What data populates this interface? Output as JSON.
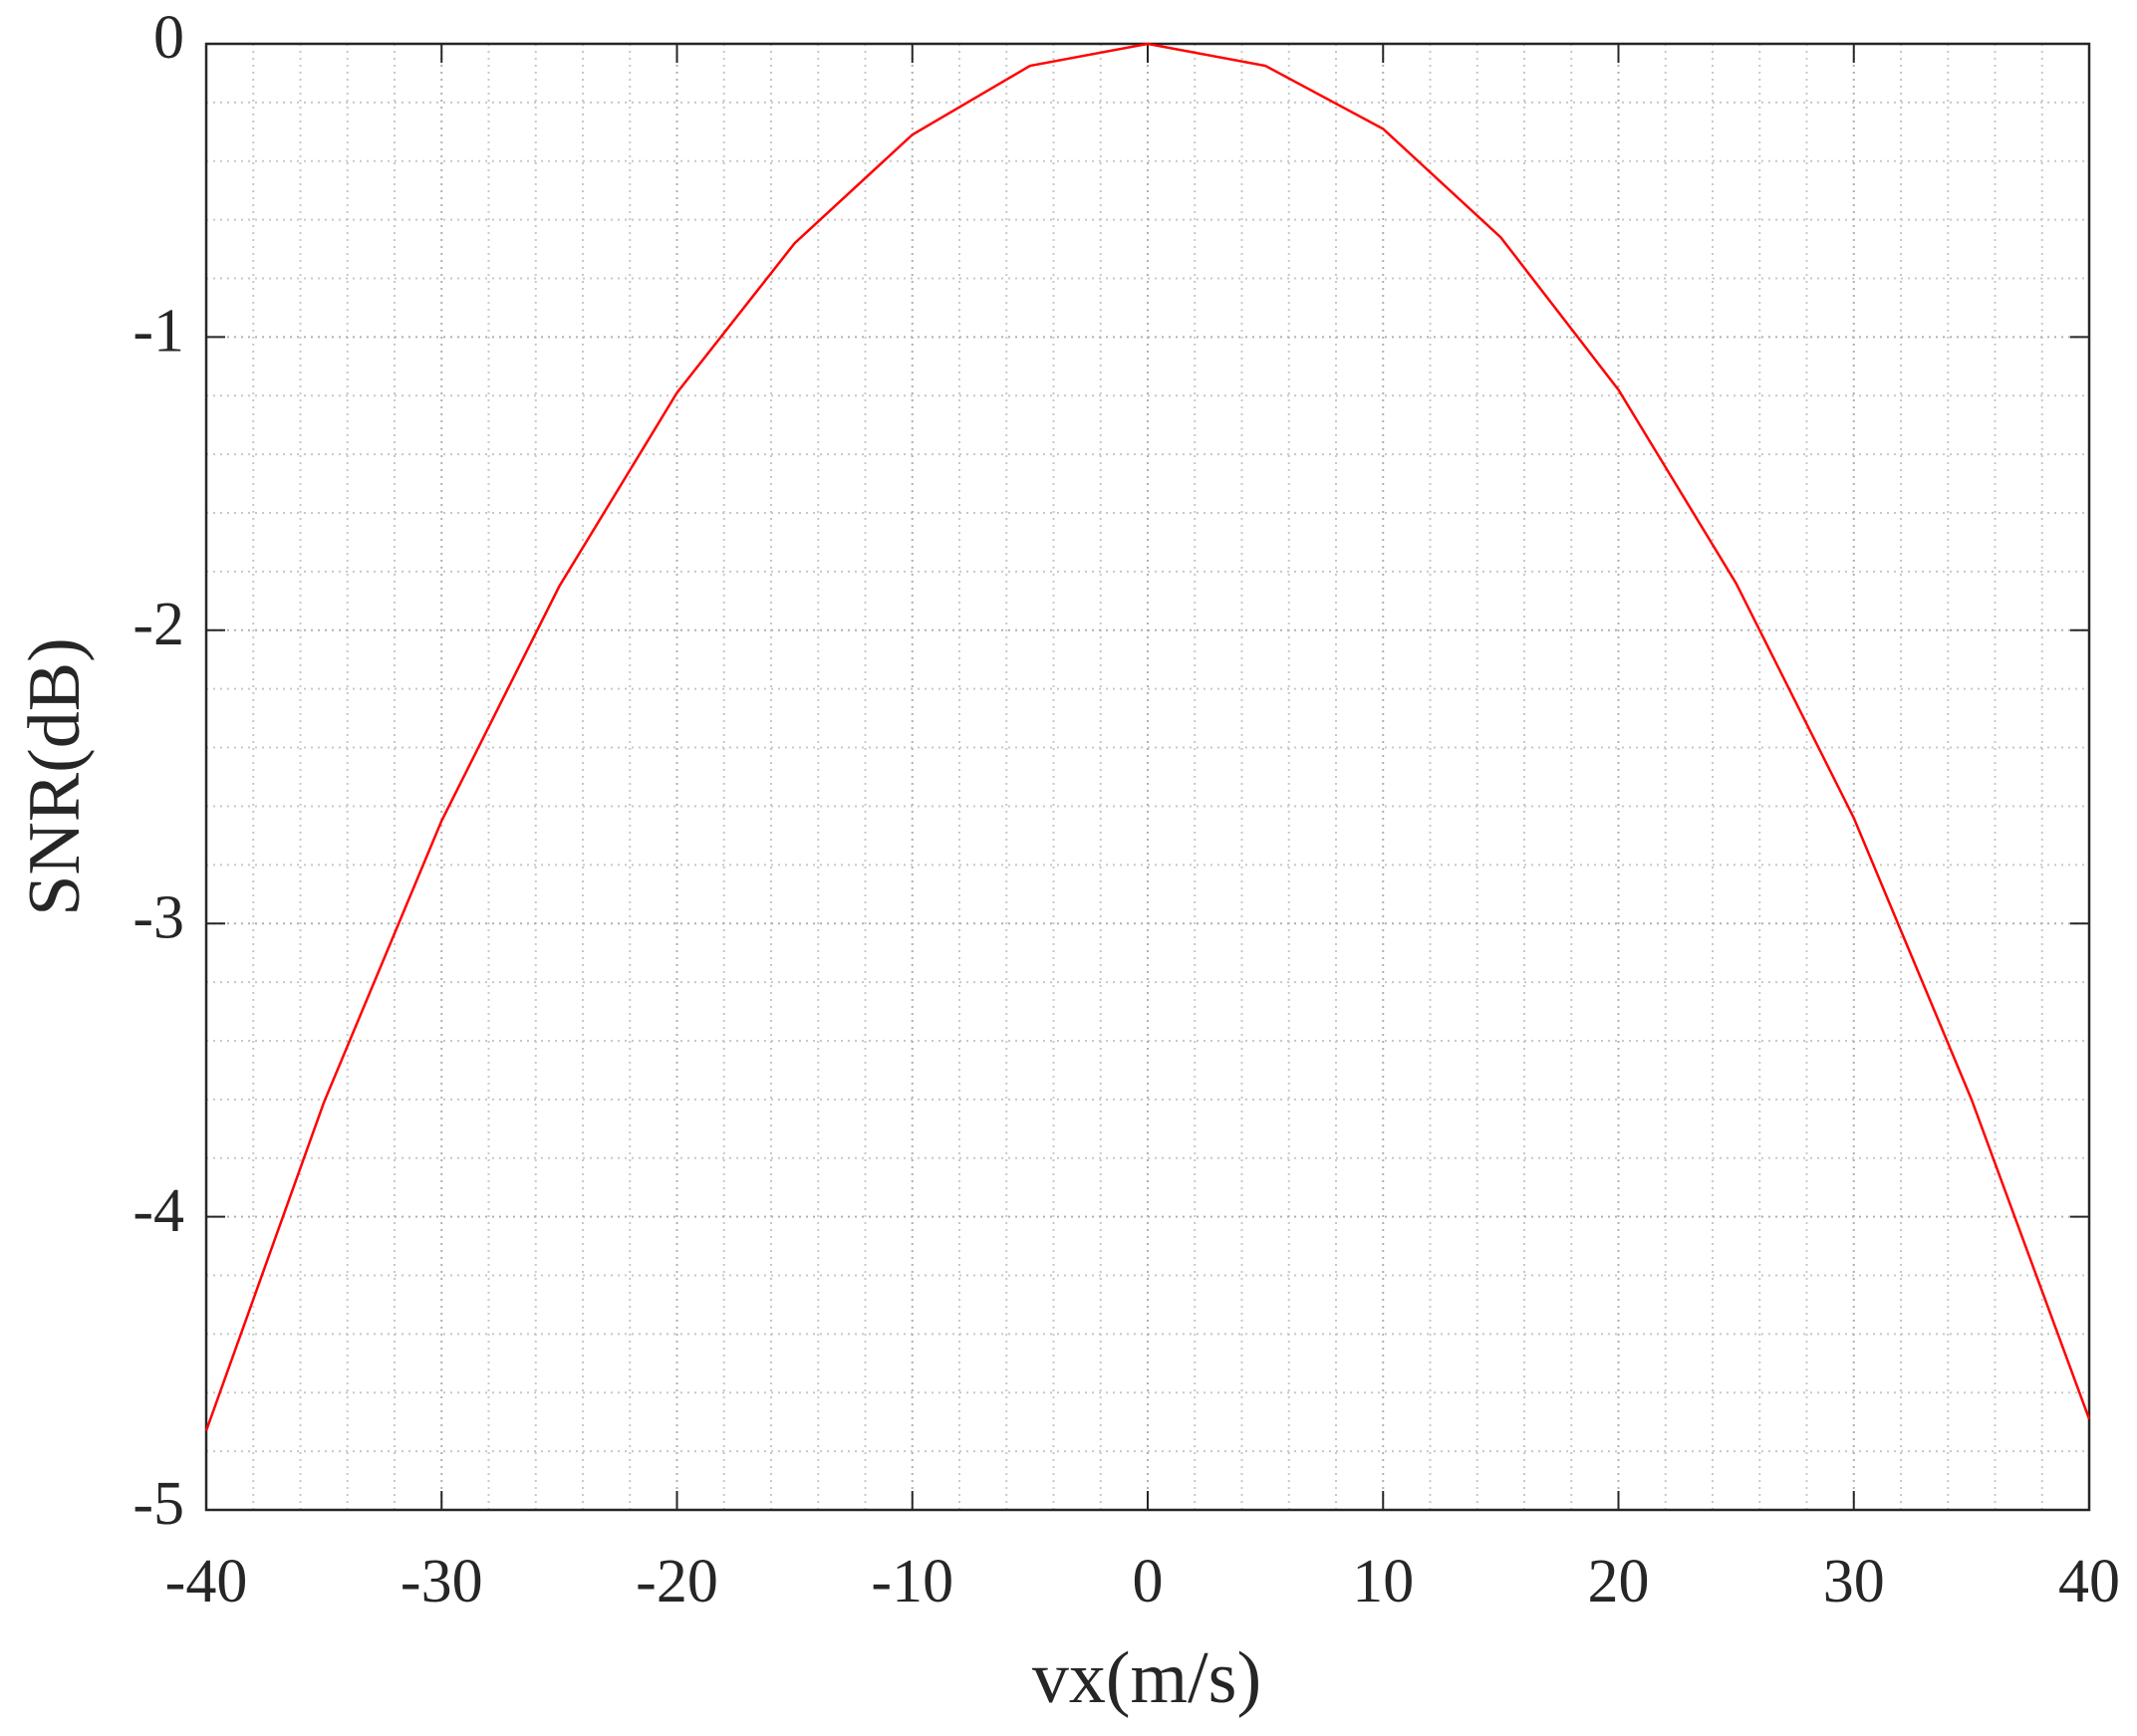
{
  "chart_data": {
    "type": "line",
    "xlabel": "vx(m/s)",
    "ylabel": "SNR(dB)",
    "x": [
      -40,
      -35,
      -30,
      -25,
      -20,
      -15,
      -10,
      -5,
      0,
      5,
      10,
      15,
      20,
      25,
      30,
      35,
      40
    ],
    "series": [
      {
        "color": "#ff0000",
        "values": [
          -4.73,
          -3.61,
          -2.65,
          -1.85,
          -1.19,
          -0.68,
          -0.31,
          -0.075,
          0,
          -0.075,
          -0.29,
          -0.66,
          -1.18,
          -1.84,
          -2.64,
          -3.6,
          -4.69
        ]
      }
    ],
    "xlim": [
      -40,
      40
    ],
    "xticks": [
      -40,
      -30,
      -20,
      -10,
      0,
      10,
      20,
      30,
      40
    ],
    "ylim": [
      -5,
      0
    ],
    "yticks": [
      -5,
      -4,
      -3,
      -2,
      -1,
      0
    ],
    "grid": true,
    "minor_grid": true
  }
}
